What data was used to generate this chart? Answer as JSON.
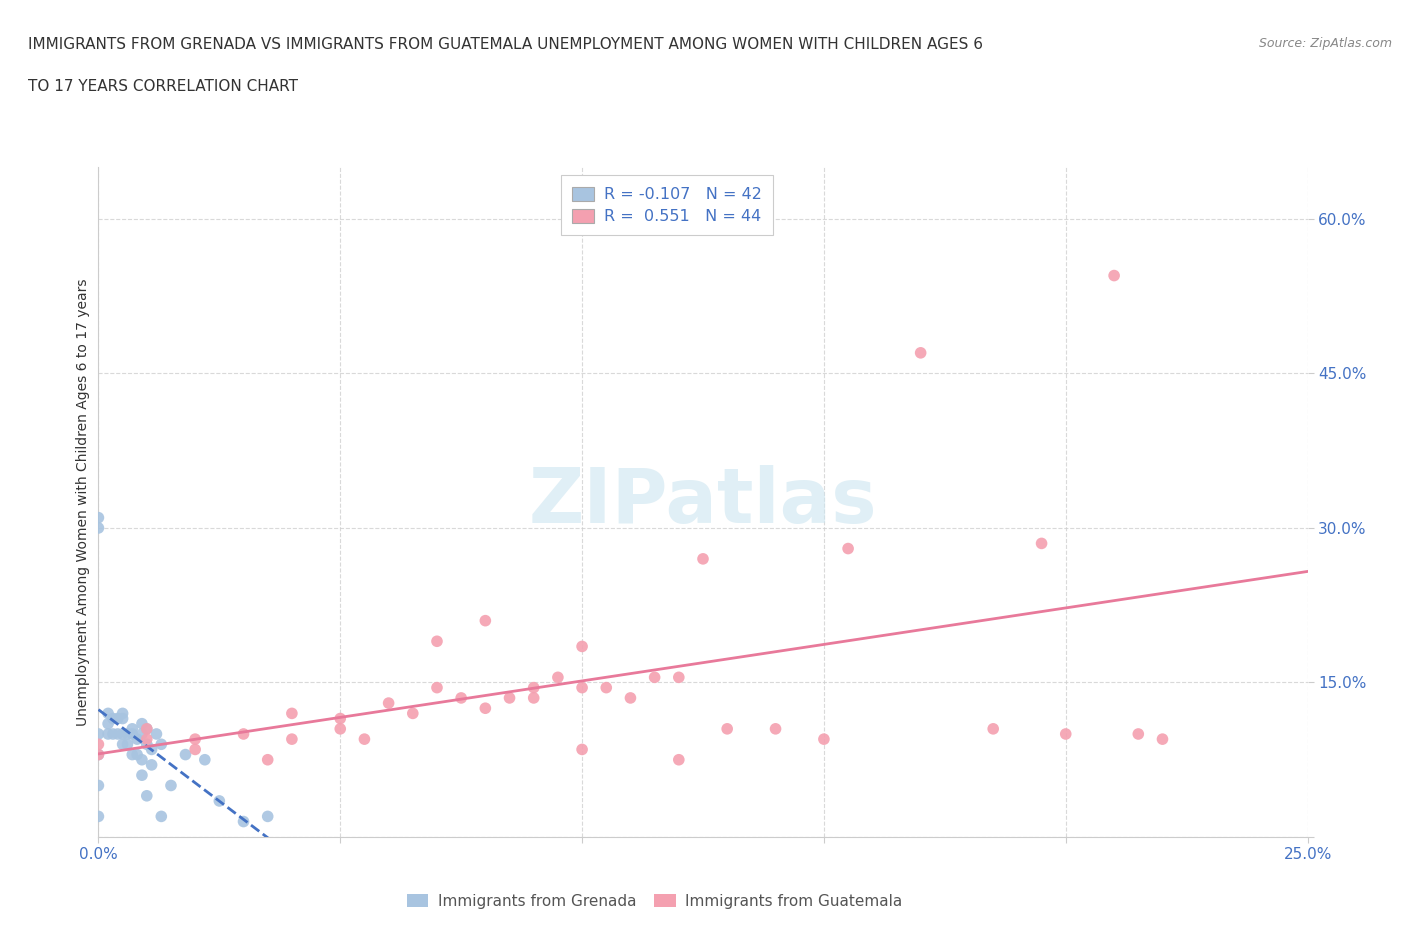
{
  "title_line1": "IMMIGRANTS FROM GRENADA VS IMMIGRANTS FROM GUATEMALA UNEMPLOYMENT AMONG WOMEN WITH CHILDREN AGES 6",
  "title_line2": "TO 17 YEARS CORRELATION CHART",
  "source": "Source: ZipAtlas.com",
  "ylabel": "Unemployment Among Women with Children Ages 6 to 17 years",
  "xlim": [
    0.0,
    0.25
  ],
  "ylim": [
    0.0,
    0.65
  ],
  "xticks": [
    0.0,
    0.05,
    0.1,
    0.15,
    0.2,
    0.25
  ],
  "yticks": [
    0.0,
    0.15,
    0.3,
    0.45,
    0.6
  ],
  "grenada_R": -0.107,
  "grenada_N": 42,
  "guatemala_R": 0.551,
  "guatemala_N": 44,
  "grenada_color": "#a8c4e0",
  "guatemala_color": "#f4a0b0",
  "grenada_line_color": "#4472c4",
  "guatemala_line_color": "#e8799a",
  "background_color": "#ffffff",
  "tick_color": "#4472c4",
  "text_color": "#333333",
  "source_color": "#888888",
  "watermark_color": "#cce5f0",
  "watermark": "ZIPatlas",
  "grenada_x": [
    0.0,
    0.0,
    0.0,
    0.0,
    0.0,
    0.0,
    0.002,
    0.002,
    0.002,
    0.003,
    0.003,
    0.004,
    0.004,
    0.005,
    0.005,
    0.005,
    0.005,
    0.006,
    0.006,
    0.007,
    0.007,
    0.007,
    0.008,
    0.008,
    0.009,
    0.009,
    0.009,
    0.009,
    0.01,
    0.01,
    0.01,
    0.011,
    0.011,
    0.012,
    0.013,
    0.013,
    0.015,
    0.018,
    0.022,
    0.025,
    0.03,
    0.035
  ],
  "grenada_y": [
    0.31,
    0.3,
    0.1,
    0.08,
    0.05,
    0.02,
    0.12,
    0.11,
    0.1,
    0.115,
    0.1,
    0.115,
    0.1,
    0.12,
    0.115,
    0.1,
    0.09,
    0.1,
    0.09,
    0.105,
    0.1,
    0.08,
    0.095,
    0.08,
    0.11,
    0.1,
    0.075,
    0.06,
    0.105,
    0.09,
    0.04,
    0.085,
    0.07,
    0.1,
    0.09,
    0.02,
    0.05,
    0.08,
    0.075,
    0.035,
    0.015,
    0.02
  ],
  "guatemala_x": [
    0.0,
    0.0,
    0.01,
    0.01,
    0.02,
    0.02,
    0.03,
    0.035,
    0.04,
    0.04,
    0.05,
    0.05,
    0.055,
    0.06,
    0.065,
    0.07,
    0.07,
    0.075,
    0.08,
    0.08,
    0.085,
    0.09,
    0.09,
    0.095,
    0.1,
    0.1,
    0.1,
    0.105,
    0.11,
    0.115,
    0.12,
    0.12,
    0.125,
    0.13,
    0.14,
    0.15,
    0.155,
    0.17,
    0.185,
    0.195,
    0.2,
    0.21,
    0.215,
    0.22
  ],
  "guatemala_y": [
    0.09,
    0.08,
    0.105,
    0.095,
    0.095,
    0.085,
    0.1,
    0.075,
    0.12,
    0.095,
    0.115,
    0.105,
    0.095,
    0.13,
    0.12,
    0.19,
    0.145,
    0.135,
    0.21,
    0.125,
    0.135,
    0.145,
    0.135,
    0.155,
    0.185,
    0.145,
    0.085,
    0.145,
    0.135,
    0.155,
    0.155,
    0.075,
    0.27,
    0.105,
    0.105,
    0.095,
    0.28,
    0.47,
    0.105,
    0.285,
    0.1,
    0.545,
    0.1,
    0.095
  ]
}
